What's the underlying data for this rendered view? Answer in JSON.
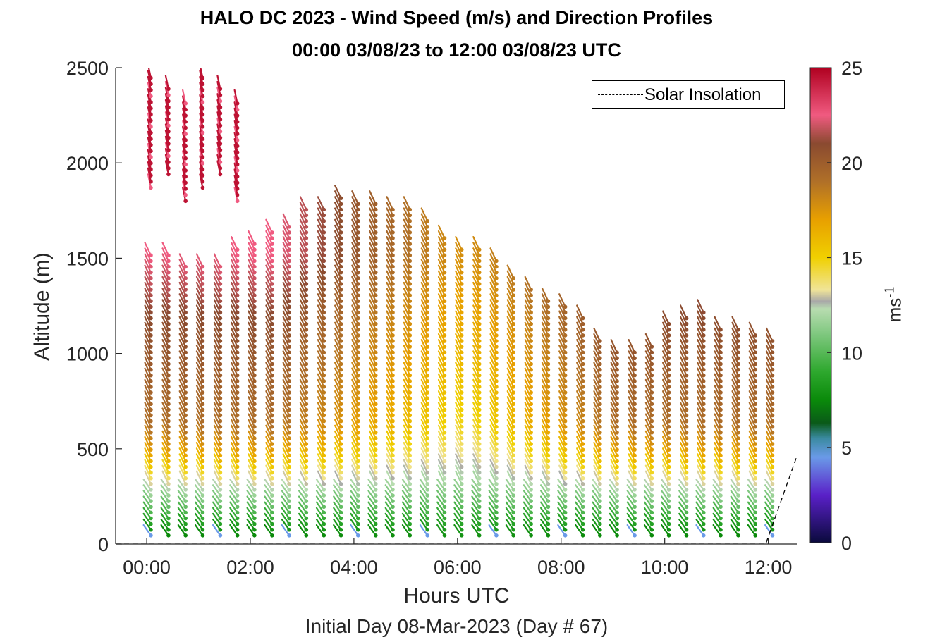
{
  "title_line1": "HALO DC 2023 - Wind Speed (m/s) and Direction Profiles",
  "title_line2": "00:00 03/08/23 to 12:00 03/08/23  UTC",
  "chart_data": {
    "type": "scatter",
    "subtype": "wind-barb profile",
    "xlabel": "Hours UTC",
    "ylabel": "Altitude (m)",
    "sublabel": "Initial Day 08-Mar-2023 (Day # 67)",
    "xlim_hours": [
      -0.6,
      12.55
    ],
    "ylim": [
      0,
      2500
    ],
    "xticks": [
      0,
      2,
      4,
      6,
      8,
      10,
      12
    ],
    "xtick_labels": [
      "00:00",
      "02:00",
      "04:00",
      "06:00",
      "08:00",
      "10:00",
      "12:00"
    ],
    "yticks": [
      0,
      500,
      1000,
      1500,
      2000,
      2500
    ],
    "ytick_labels": [
      "0",
      "500",
      "1000",
      "1500",
      "2000",
      "2500"
    ],
    "colorbar": {
      "label": "ms",
      "label_exponent": "-1",
      "range": [
        0,
        25
      ],
      "ticks": [
        0,
        5,
        10,
        15,
        20,
        25
      ],
      "tick_labels": [
        "0",
        "5",
        "10",
        "15",
        "20",
        "25"
      ],
      "stops": [
        {
          "v": 0,
          "c": "#0a0a3c"
        },
        {
          "v": 2.5,
          "c": "#5a20c8"
        },
        {
          "v": 4.5,
          "c": "#6a9ae8"
        },
        {
          "v": 5.5,
          "c": "#3a8aa0"
        },
        {
          "v": 6.3,
          "c": "#0a5a18"
        },
        {
          "v": 7.5,
          "c": "#0a8a0a"
        },
        {
          "v": 9,
          "c": "#2ea82e"
        },
        {
          "v": 11,
          "c": "#80c880"
        },
        {
          "v": 12.3,
          "c": "#b8dcb0"
        },
        {
          "v": 12.7,
          "c": "#a8a8a8"
        },
        {
          "v": 13.3,
          "c": "#f0e498"
        },
        {
          "v": 15,
          "c": "#f0d000"
        },
        {
          "v": 17,
          "c": "#e8a000"
        },
        {
          "v": 19,
          "c": "#b07028"
        },
        {
          "v": 21,
          "c": "#8a4a30"
        },
        {
          "v": 22.5,
          "c": "#f05a80"
        },
        {
          "v": 25,
          "c": "#b00020"
        }
      ]
    },
    "profile_times_hours": [
      0.08,
      0.42,
      0.75,
      1.08,
      1.42,
      1.75,
      2.08,
      2.42,
      2.75,
      3.08,
      3.42,
      3.75,
      4.08,
      4.42,
      4.75,
      5.08,
      5.42,
      5.75,
      6.08,
      6.42,
      6.75,
      7.08,
      7.42,
      7.75,
      8.08,
      8.42,
      8.75,
      9.08,
      9.42,
      9.75,
      10.08,
      10.42,
      10.75,
      11.08,
      11.42,
      11.75,
      12.08
    ],
    "profile_top_altitude_m": [
      1540,
      1540,
      1460,
      1480,
      1480,
      1570,
      1600,
      1650,
      1680,
      1770,
      1780,
      1820,
      1800,
      1800,
      1770,
      1760,
      1700,
      1610,
      1570,
      1550,
      1500,
      1420,
      1340,
      1290,
      1250,
      1210,
      1090,
      1020,
      1010,
      1050,
      1160,
      1200,
      1220,
      1130,
      1130,
      1120,
      1090
    ],
    "upper_cluster": {
      "hours_start": 0.08,
      "hours_end": 1.75,
      "altitude_range_m": [
        1800,
        2460
      ],
      "speed_ms": 24.5
    },
    "speed_profile": [
      {
        "altitude_m": 50,
        "speed_ms": 7.5
      },
      {
        "altitude_m": 150,
        "speed_ms": 9.5
      },
      {
        "altitude_m": 250,
        "speed_ms": 11.5
      },
      {
        "altitude_m": 350,
        "speed_ms": 14
      },
      {
        "altitude_m": 450,
        "speed_ms": 16.5
      },
      {
        "altitude_m": 600,
        "speed_ms": 19
      },
      {
        "altitude_m": 900,
        "speed_ms": 20
      },
      {
        "altitude_m": 1200,
        "speed_ms": 21
      },
      {
        "altitude_m": 1500,
        "speed_ms": 22.5
      }
    ],
    "midday_speed_profile": [
      {
        "altitude_m": 50,
        "speed_ms": 8
      },
      {
        "altitude_m": 300,
        "speed_ms": 11.5
      },
      {
        "altitude_m": 600,
        "speed_ms": 14
      },
      {
        "altitude_m": 1000,
        "speed_ms": 15.5
      },
      {
        "altitude_m": 1500,
        "speed_ms": 17
      }
    ],
    "solar_insolation": [
      {
        "hours": -0.6,
        "altitude_m": 0
      },
      {
        "hours": 11.95,
        "altitude_m": 0
      },
      {
        "hours": 12.55,
        "altitude_m": 460
      }
    ],
    "legend": {
      "label": "Solar Insolation",
      "location": "top-right",
      "line_style": "dashed"
    }
  }
}
